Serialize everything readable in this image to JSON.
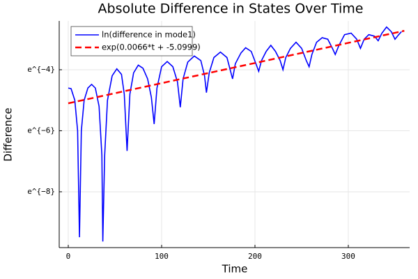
{
  "chart_data": {
    "type": "line",
    "title": "Absolute Difference in States Over Time",
    "x_label": "Time",
    "y_label": "Difference",
    "xlim": [
      -9.7,
      365.7
    ],
    "xticks": [
      0,
      100,
      200,
      300
    ],
    "ylim": [
      5.38e-05,
      0.0907
    ],
    "y_scale": "log",
    "yticks": [
      {
        "value": 0.018316,
        "label": "e^{−4}"
      },
      {
        "value": 0.0024788,
        "label": "e^{−6}"
      },
      {
        "value": 0.00033546,
        "label": "e^{−8}"
      }
    ],
    "grid": true,
    "legend_position": "upper left",
    "series": [
      {
        "name": "ln(difference in mode1)",
        "color": "#0000ff",
        "dash": false,
        "x": [
          0,
          3,
          7,
          10,
          12,
          14,
          17,
          21,
          25,
          29,
          33,
          36,
          37,
          39,
          42,
          47,
          52,
          57,
          60,
          63,
          66,
          70,
          75,
          80,
          85,
          89,
          92,
          95,
          100,
          106,
          112,
          117,
          120,
          123,
          128,
          135,
          142,
          146,
          148,
          151,
          156,
          163,
          170,
          176,
          179,
          185,
          190,
          196,
          201,
          204,
          207,
          212,
          217,
          222,
          227,
          230,
          233,
          238,
          244,
          250,
          255,
          258,
          261,
          266,
          272,
          278,
          283,
          286,
          290,
          296,
          303,
          309,
          313,
          317,
          322,
          328,
          332,
          336,
          341,
          346,
          350,
          354,
          357
        ],
        "values": [
          0.01005,
          0.009853,
          0.006738,
          0.002479,
          7.563e-05,
          0.002479,
          0.006738,
          0.01005,
          0.01133,
          0.01005,
          0.005517,
          0.001114,
          6.572e-05,
          0.001114,
          0.006738,
          0.015,
          0.01887,
          0.01576,
          0.00823,
          0.001281,
          0.00823,
          0.01657,
          0.02128,
          0.01925,
          0.01357,
          0.007447,
          0.003089,
          0.01005,
          0.02024,
          0.02399,
          0.02024,
          0.01228,
          0.005354,
          0.01357,
          0.02352,
          0.02872,
          0.02472,
          0.015,
          0.008652,
          0.01657,
          0.02732,
          0.03271,
          0.02732,
          0.01357,
          0.02237,
          0.03175,
          0.03763,
          0.03337,
          0.02237,
          0.01742,
          0.02472,
          0.03337,
          0.04076,
          0.03337,
          0.02472,
          0.01832,
          0.02732,
          0.03688,
          0.04505,
          0.03688,
          0.02472,
          0.02024,
          0.0302,
          0.04505,
          0.05234,
          0.04979,
          0.03688,
          0.0302,
          0.04076,
          0.05784,
          0.06081,
          0.04979,
          0.03688,
          0.04979,
          0.05784,
          0.05502,
          0.04736,
          0.06081,
          0.07427,
          0.06393,
          0.04979,
          0.05784,
          0.06393
        ]
      },
      {
        "name": "exp(0.0066*t + -5.0999)",
        "color": "#ff0000",
        "dash": true,
        "x": [
          0,
          360
        ],
        "values": [
          0.006097,
          0.06563
        ]
      }
    ]
  }
}
